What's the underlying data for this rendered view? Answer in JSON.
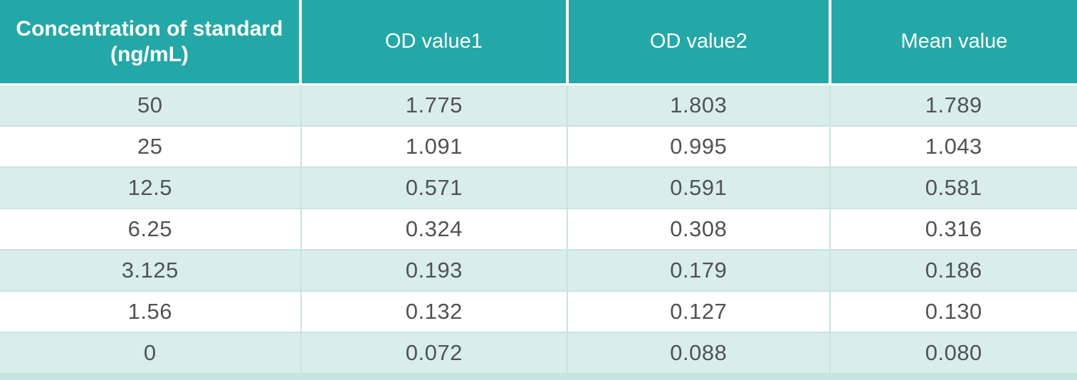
{
  "colors": {
    "teal": "#24a8a7",
    "tint": "#d9edeb",
    "grid": "#c6e5e1",
    "text": "#505354",
    "header_text": "#ffffff"
  },
  "header": {
    "col1_line1": "Concentration of standard",
    "col1_line2": "(ng/mL)",
    "col2": "OD value1",
    "col3": "OD value2",
    "col4": "Mean value"
  },
  "chart_data": {
    "type": "table",
    "title": "",
    "columns": [
      "Concentration of standard (ng/mL)",
      "OD value1",
      "OD value2",
      "Mean value"
    ],
    "rows": [
      [
        "50",
        "1.775",
        "1.803",
        "1.789"
      ],
      [
        "25",
        "1.091",
        "0.995",
        "1.043"
      ],
      [
        "12.5",
        "0.571",
        "0.591",
        "0.581"
      ],
      [
        "6.25",
        "0.324",
        "0.308",
        "0.316"
      ],
      [
        "3.125",
        "0.193",
        "0.179",
        "0.186"
      ],
      [
        "1.56",
        "0.132",
        "0.127",
        "0.130"
      ],
      [
        "0",
        "0.072",
        "0.088",
        "0.080"
      ]
    ],
    "layout": {
      "header_background": "#24a8a7",
      "alternating_rows": true,
      "first_data_row_tinted": true
    }
  }
}
